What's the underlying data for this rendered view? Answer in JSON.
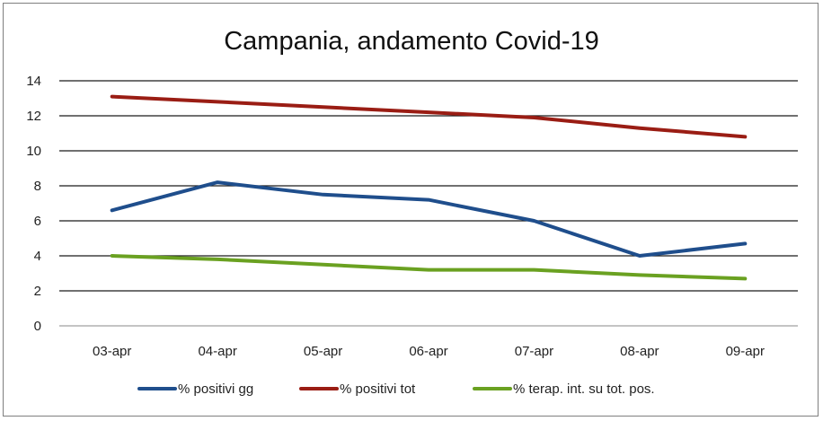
{
  "chart_data": {
    "type": "line",
    "title": "Campania, andamento Covid-19",
    "xlabel": "",
    "ylabel": "",
    "ylim": [
      0,
      14
    ],
    "yticks": [
      0,
      2,
      4,
      6,
      8,
      10,
      12,
      14
    ],
    "grid": true,
    "legend_position": "bottom",
    "categories": [
      "03-apr",
      "04-apr",
      "05-apr",
      "06-apr",
      "07-apr",
      "08-apr",
      "09-apr"
    ],
    "series": [
      {
        "name": "% positivi gg",
        "color": "#1f4e8c",
        "values": [
          6.6,
          8.2,
          7.5,
          7.2,
          6.0,
          4.0,
          4.7
        ]
      },
      {
        "name": "% positivi tot",
        "color": "#9a1d14",
        "values": [
          13.1,
          12.8,
          12.5,
          12.2,
          11.9,
          11.3,
          10.8
        ]
      },
      {
        "name": "% terap. int. su tot. pos.",
        "color": "#6aa121",
        "values": [
          4.0,
          3.8,
          3.5,
          3.2,
          3.2,
          2.9,
          2.7
        ]
      }
    ]
  }
}
